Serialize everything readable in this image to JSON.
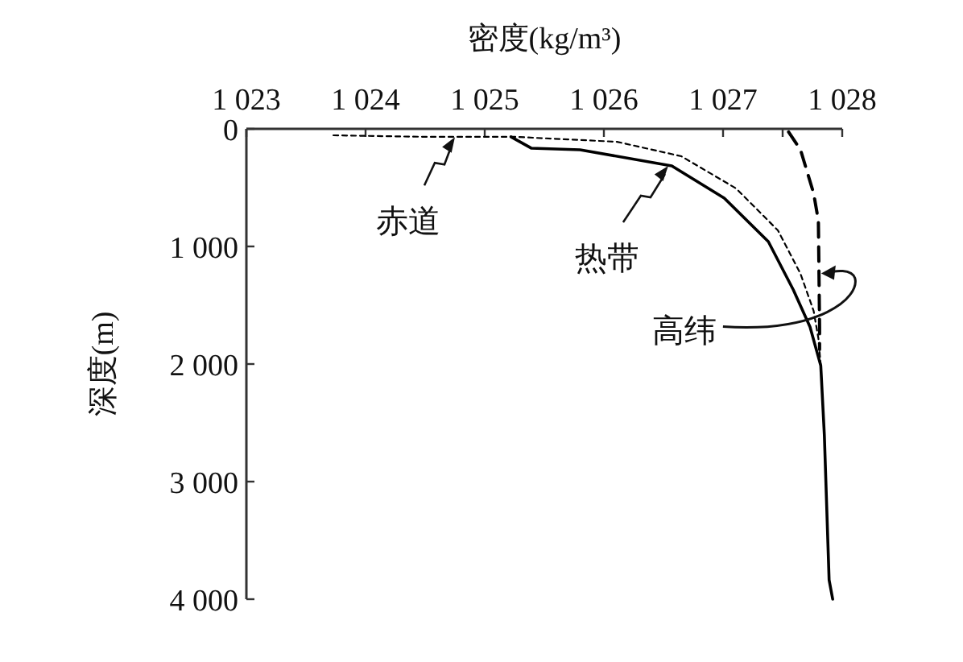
{
  "chart_data": {
    "type": "line",
    "xlabel": "密度(kg/m³)",
    "ylabel": "深度(m)",
    "xlim": [
      1023,
      1028
    ],
    "ylim": [
      4000,
      0
    ],
    "xticks": [
      {
        "value": 1023,
        "label": "1 023"
      },
      {
        "value": 1024,
        "label": "1 024"
      },
      {
        "value": 1025,
        "label": "1 025"
      },
      {
        "value": 1026,
        "label": "1 026"
      },
      {
        "value": 1027,
        "label": "1 027"
      },
      {
        "value": 1027.5,
        "label": null
      },
      {
        "value": 1028,
        "label": "1 028"
      }
    ],
    "yticks": [
      0,
      {
        "value": 1000,
        "label": "1 000"
      },
      {
        "value": 2000,
        "label": "2 000"
      },
      {
        "value": 3000,
        "label": "3 000"
      },
      {
        "value": 4000,
        "label": "4 000"
      }
    ],
    "series": [
      {
        "color": "#000000",
        "line_style": "dotted",
        "x": [
          1023.73,
          1024.5,
          1025.26,
          1025.5,
          1026.11,
          1026.65,
          1027.11,
          1027.46,
          1027.65,
          1027.76,
          1027.8,
          1027.82
        ],
        "values": [
          55,
          68,
          68,
          80,
          110,
          233,
          507,
          863,
          1233,
          1548,
          1781,
          2014
        ]
      },
      {
        "color": "#000000",
        "line_style": "solid",
        "x": [
          1025.22,
          1025.39,
          1025.8,
          1026.57,
          1027.01,
          1027.38,
          1027.59,
          1027.73,
          1027.82,
          1027.85,
          1027.89,
          1027.92
        ],
        "values": [
          68,
          164,
          178,
          315,
          589,
          959,
          1370,
          1685,
          2014,
          2603,
          3836,
          4000
        ]
      },
      {
        "color": "#000000",
        "line_style": "dashed",
        "x": [
          1027.55,
          1027.65,
          1027.76,
          1027.8,
          1027.81,
          1027.81
        ],
        "values": [
          27,
          178,
          548,
          781,
          1685,
          1877
        ]
      }
    ],
    "annotations": [
      {
        "text": "赤道",
        "x": 1024.75,
        "y": 70
      },
      {
        "text": "热带",
        "x": 1026.54,
        "y": 315
      },
      {
        "text": "高纬",
        "x": 1027.81,
        "y": 1230
      }
    ]
  }
}
